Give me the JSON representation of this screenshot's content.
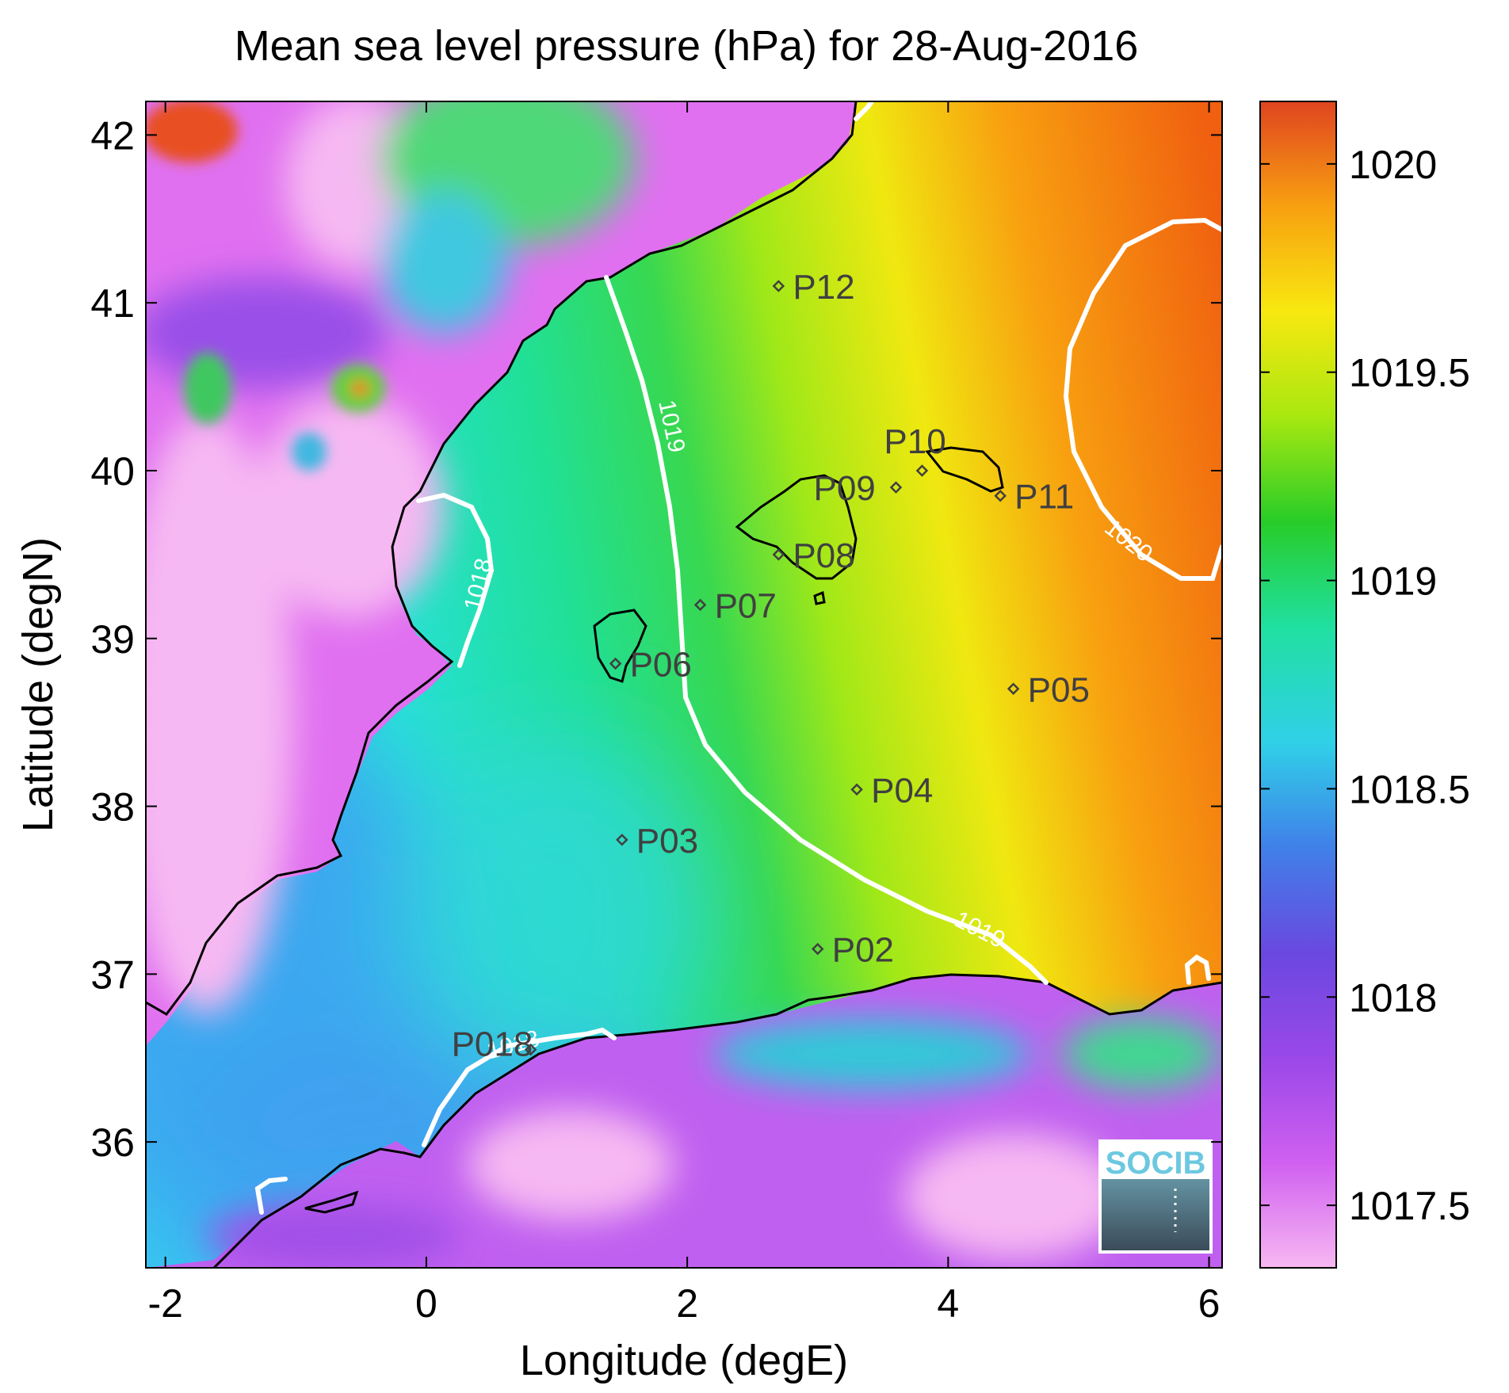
{
  "chart_data": {
    "type": "heatmap",
    "title": "Mean sea level pressure (hPa) for 28-Aug-2016",
    "xlabel": "Longitude (degE)",
    "ylabel": "Latitude (degN)",
    "xlim": [
      -2.15,
      6.1
    ],
    "ylim": [
      35.25,
      42.2
    ],
    "x_ticks": [
      -2,
      0,
      2,
      4,
      6
    ],
    "y_ticks": [
      36,
      37,
      38,
      39,
      40,
      41,
      42
    ],
    "x_tick_labels": [
      "-2",
      "0",
      "2",
      "4",
      "6"
    ],
    "y_tick_labels": [
      "36",
      "37",
      "38",
      "39",
      "40",
      "41",
      "42"
    ],
    "colorbar": {
      "range": [
        1017.35,
        1020.15
      ],
      "ticks": [
        1017.5,
        1018,
        1018.5,
        1019,
        1019.5,
        1020
      ],
      "tick_labels": [
        "1017.5",
        "1018",
        "1018.5",
        "1019",
        "1019.5",
        "1020"
      ],
      "colors": [
        "#f7b8f2",
        "#d060f0",
        "#7a40e0",
        "#4070e8",
        "#30d8e8",
        "#20e090",
        "#28cc28",
        "#c8ee10",
        "#f8e010",
        "#f8a010",
        "#f05010",
        "#d84028"
      ]
    },
    "stations": [
      {
        "name": "P01",
        "label": "P018",
        "lon": 0.8,
        "lat": 36.55
      },
      {
        "name": "P02",
        "label": "P02",
        "lon": 3.0,
        "lat": 37.15
      },
      {
        "name": "P03",
        "label": "P03",
        "lon": 1.5,
        "lat": 37.8
      },
      {
        "name": "P04",
        "label": "P04",
        "lon": 3.3,
        "lat": 38.1
      },
      {
        "name": "P05",
        "label": "P05",
        "lon": 4.5,
        "lat": 38.7
      },
      {
        "name": "P06",
        "label": "P06",
        "lon": 1.45,
        "lat": 38.85
      },
      {
        "name": "P07",
        "label": "P07",
        "lon": 2.1,
        "lat": 39.2
      },
      {
        "name": "P08",
        "label": "P08",
        "lon": 2.7,
        "lat": 39.5
      },
      {
        "name": "P09",
        "label": "P09",
        "lon": 3.6,
        "lat": 39.9
      },
      {
        "name": "P10",
        "label": "P10",
        "lon": 3.8,
        "lat": 40.0
      },
      {
        "name": "P11",
        "label": "P11",
        "lon": 4.4,
        "lat": 39.85
      },
      {
        "name": "P12",
        "label": "P12",
        "lon": 2.7,
        "lat": 41.1
      }
    ],
    "contours": [
      {
        "level": 1018,
        "label": "1018",
        "label_count": 2
      },
      {
        "level": 1019,
        "label": "1019",
        "label_count": 2
      },
      {
        "level": 1020,
        "label": "1020",
        "label_count": 1
      }
    ]
  },
  "logo": {
    "text": "SOCIB"
  },
  "colors": {
    "coastline": "#000000",
    "contour": "#ffffff",
    "station_marker": "#404040"
  }
}
